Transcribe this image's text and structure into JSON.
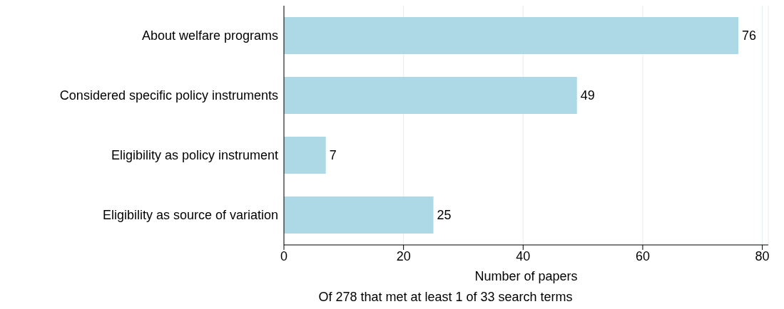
{
  "chart_data": {
    "type": "bar",
    "orientation": "horizontal",
    "categories": [
      "About welfare programs",
      "Considered specific policy instruments",
      "Eligibility as policy instrument",
      "Eligibility as source of variation"
    ],
    "values": [
      76,
      49,
      7,
      25
    ],
    "color": "#add8e6",
    "data_labels": true,
    "xlim": [
      0,
      81
    ],
    "xticks": [
      0,
      20,
      40,
      60,
      80
    ],
    "grid": "x",
    "xlabel": "Number of papers",
    "annotations": [
      "Of 278 that met at least 1 of 33 search terms"
    ]
  }
}
